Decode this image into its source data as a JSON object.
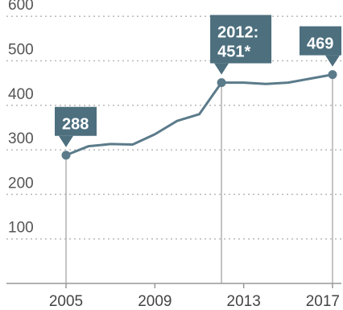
{
  "chart_data": {
    "type": "line",
    "title": "",
    "xlabel": "",
    "ylabel": "",
    "xlim": [
      2005,
      2017
    ],
    "ylim": [
      0,
      600
    ],
    "y_ticks": [
      "100",
      "200",
      "300",
      "400",
      "500",
      "600"
    ],
    "x_ticks": [
      "2005",
      "2009",
      "2013",
      "2017"
    ],
    "grid": true,
    "colors": {
      "line": "#5b7b8a",
      "callout": "#4d6f7e",
      "grid": "#b9b9b9",
      "axis": "#999999"
    },
    "series": [
      {
        "x": [
          2005,
          2006,
          2007,
          2008,
          2009,
          2010,
          2011,
          2012,
          2013,
          2014,
          2015,
          2016,
          2017
        ],
        "values": [
          288,
          308,
          313,
          312,
          335,
          365,
          380,
          451,
          451,
          448,
          451,
          460,
          469
        ]
      }
    ],
    "annotations": [
      {
        "x": 2005,
        "y": 288,
        "lines": [
          "288"
        ]
      },
      {
        "x": 2012,
        "y": 451,
        "lines": [
          "2012:",
          "451*"
        ]
      },
      {
        "x": 2017,
        "y": 469,
        "lines": [
          "469"
        ]
      }
    ]
  }
}
